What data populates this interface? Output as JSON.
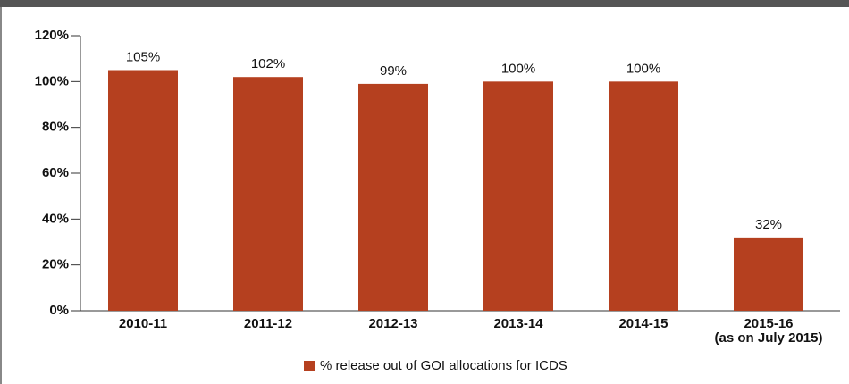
{
  "chart_data": {
    "type": "bar",
    "categories": [
      "2010-11",
      "2011-12",
      "2012-13",
      "2013-14",
      "2014-15",
      "2015-16\n(as on July 2015)"
    ],
    "series": [
      {
        "name": "% release out of GOI allocations for ICDS",
        "color": "#b5401f",
        "values": [
          105,
          102,
          99,
          100,
          100,
          32
        ],
        "value_labels": [
          "105%",
          "102%",
          "99%",
          "100%",
          "100%",
          "32%"
        ]
      }
    ],
    "ylim": [
      0,
      120
    ],
    "yticks": [
      {
        "value": 0,
        "label": "0%"
      },
      {
        "value": 20,
        "label": "20%"
      },
      {
        "value": 40,
        "label": "40%"
      },
      {
        "value": 60,
        "label": "60%"
      },
      {
        "value": 80,
        "label": "80%"
      },
      {
        "value": 100,
        "label": "100%"
      },
      {
        "value": 120,
        "label": "120%"
      }
    ],
    "legend": "bottom"
  }
}
